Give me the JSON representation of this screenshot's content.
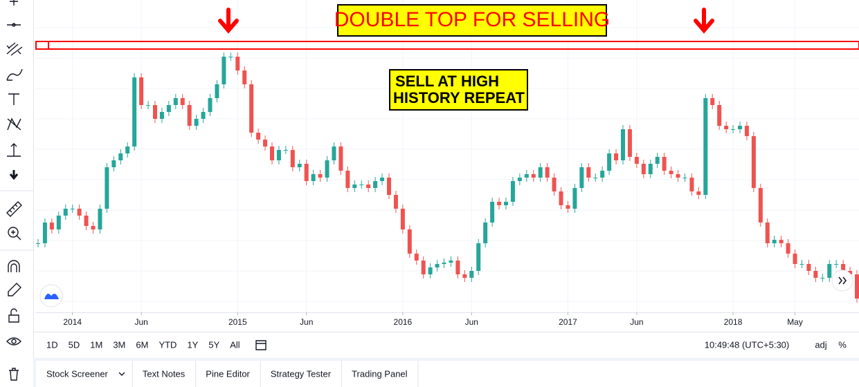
{
  "chart_data": {
    "type": "candlestick",
    "categories": [
      null,
      null,
      null,
      null,
      null,
      "2014",
      null,
      null,
      null,
      null,
      null,
      null,
      null,
      null,
      null,
      "Jun",
      null,
      null,
      null,
      null,
      null,
      null,
      null,
      null,
      null,
      null,
      null,
      null,
      null,
      "2015",
      null,
      null,
      null,
      null,
      null,
      null,
      null,
      null,
      null,
      "Jun",
      null,
      null,
      null,
      null,
      null,
      null,
      null,
      null,
      null,
      null,
      null,
      null,
      null,
      "2016",
      null,
      null,
      null,
      null,
      null,
      null,
      null,
      null,
      null,
      "Jun",
      null,
      null,
      null,
      null,
      null,
      null,
      null,
      null,
      null,
      null,
      null,
      null,
      null,
      "2017",
      null,
      null,
      null,
      null,
      null,
      null,
      null,
      null,
      null,
      "Jun",
      null,
      null,
      null,
      null,
      null,
      null,
      null,
      null,
      null,
      null,
      null,
      null,
      null,
      "2018",
      null,
      null,
      null,
      null,
      null,
      null,
      null,
      null,
      "May",
      null,
      null,
      null,
      null,
      null,
      null,
      null,
      null,
      null
    ],
    "values": [
      100,
      130,
      120,
      140,
      150,
      150,
      140,
      125,
      120,
      150,
      210,
      220,
      230,
      240,
      340,
      300,
      300,
      280,
      290,
      300,
      310,
      300,
      270,
      280,
      290,
      310,
      330,
      370,
      370,
      350,
      330,
      260,
      250,
      240,
      220,
      235,
      235,
      210,
      215,
      190,
      200,
      195,
      220,
      240,
      205,
      180,
      185,
      185,
      180,
      190,
      195,
      170,
      150,
      120,
      85,
      75,
      55,
      65,
      70,
      72,
      75,
      55,
      50,
      60,
      100,
      130,
      160,
      155,
      160,
      190,
      195,
      200,
      195,
      210,
      195,
      175,
      155,
      150,
      180,
      210,
      195,
      195,
      205,
      230,
      220,
      265,
      225,
      215,
      200,
      215,
      225,
      205,
      200,
      195,
      195,
      175,
      170,
      310,
      300,
      270,
      265,
      265,
      270,
      255,
      180,
      130,
      100,
      105,
      100,
      85,
      70,
      70,
      60,
      50,
      50,
      70,
      70,
      60,
      55,
      20
    ],
    "up_color": "#26a69a",
    "down_color": "#ef5350",
    "ylim": [
      0,
      450
    ],
    "resistance": [
      381,
      392
    ],
    "annotations": [
      "DOUBLE TOP FOR SELLING",
      "SELL AT HIGH",
      "HISTORY REPEAT"
    ]
  },
  "ranges": [
    "1D",
    "5D",
    "1M",
    "3M",
    "6M",
    "YTD",
    "1Y",
    "5Y",
    "All"
  ],
  "clock": "10:49:48 (UTC+5:30)",
  "adj": "adj",
  "percent": "%",
  "tabs": [
    "Stock Screener",
    "Text Notes",
    "Pine Editor",
    "Strategy Tester",
    "Trading Panel"
  ]
}
